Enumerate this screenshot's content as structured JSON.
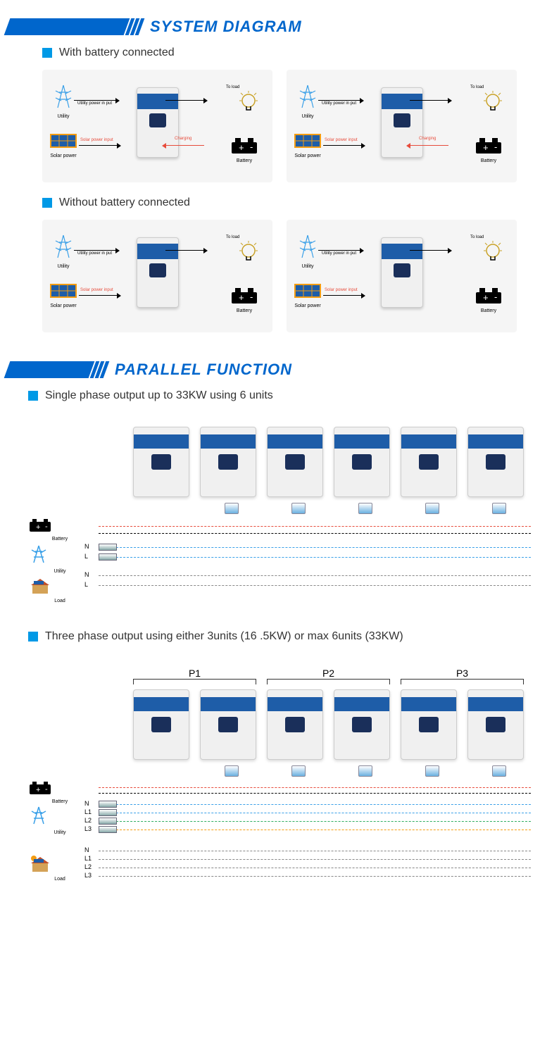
{
  "sections": {
    "system": {
      "title": "SYSTEM DIAGRAM",
      "sub1": "With battery connected",
      "sub2": "Without battery connected"
    },
    "parallel": {
      "title": "PARALLEL FUNCTION",
      "sub1": "Single phase output up to 33KW using 6 units",
      "sub2": "Three phase output using either 3units (16 .5KW) or max 6units (33KW)"
    }
  },
  "diagram_labels": {
    "utility": "Utility",
    "solar": "Solar power",
    "battery": "Battery",
    "toload": "To load",
    "util_in": "Utility power in put",
    "solar_in": "Solar power input",
    "charging": "Charging",
    "load": "Load"
  },
  "phases": {
    "p1": "P1",
    "p2": "P2",
    "p3": "P3"
  },
  "wire_labels": {
    "n": "N",
    "l": "L",
    "l1": "L1",
    "l2": "L2",
    "l3": "L3"
  },
  "colors": {
    "accent": "#0066cc",
    "band": "#1e5da8",
    "screen": "#1a2f5a",
    "bg_panel": "#f5f5f5",
    "red": "#e74c3c",
    "blue_light": "#0099e6",
    "wire_blue": "#3aa0e8",
    "wire_green": "#2fae60",
    "wire_orange": "#f39c12"
  },
  "single_phase": {
    "units": 6,
    "lines": [
      "N",
      "L"
    ]
  },
  "three_phase": {
    "units": 6,
    "groups": 3,
    "utility_lines": [
      "N",
      "L1",
      "L2",
      "L3"
    ],
    "load_lines": [
      "N",
      "L1",
      "L2",
      "L3"
    ]
  }
}
